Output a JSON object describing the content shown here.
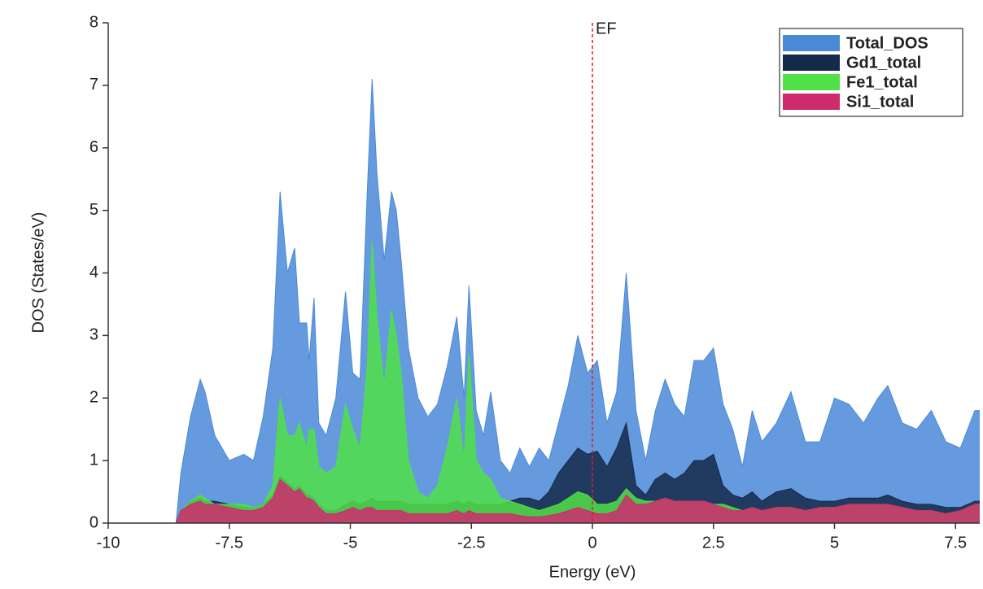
{
  "chart_data": {
    "type": "area",
    "xlabel": "Energy (eV)",
    "ylabel": "DOS (States/eV)",
    "xlim": [
      -10,
      8
    ],
    "ylim": [
      0,
      8
    ],
    "xticks": [
      -10,
      -7.5,
      -5,
      -2.5,
      0,
      2.5,
      5,
      7.5
    ],
    "yticks": [
      0,
      1,
      2,
      3,
      4,
      5,
      6,
      7,
      8
    ],
    "legend": "upper right",
    "annotations": [
      {
        "text": "EF",
        "x": 0,
        "color": "#e02020"
      }
    ],
    "x": [
      -10,
      -8.6,
      -8.5,
      -8.3,
      -8.1,
      -8.0,
      -7.8,
      -7.5,
      -7.2,
      -7.0,
      -6.8,
      -6.6,
      -6.45,
      -6.3,
      -6.15,
      -6.05,
      -5.9,
      -5.85,
      -5.75,
      -5.65,
      -5.5,
      -5.3,
      -5.1,
      -4.95,
      -4.8,
      -4.65,
      -4.55,
      -4.45,
      -4.3,
      -4.15,
      -4.05,
      -3.95,
      -3.8,
      -3.6,
      -3.4,
      -3.2,
      -3.0,
      -2.8,
      -2.65,
      -2.55,
      -2.4,
      -2.25,
      -2.1,
      -1.9,
      -1.7,
      -1.5,
      -1.3,
      -1.1,
      -0.9,
      -0.7,
      -0.5,
      -0.3,
      -0.1,
      0.1,
      0.3,
      0.5,
      0.7,
      0.9,
      1.1,
      1.3,
      1.5,
      1.7,
      1.9,
      2.1,
      2.3,
      2.5,
      2.7,
      2.9,
      3.1,
      3.3,
      3.5,
      3.8,
      4.1,
      4.4,
      4.7,
      5.0,
      5.3,
      5.6,
      5.9,
      6.1,
      6.4,
      6.7,
      7.0,
      7.3,
      7.6,
      7.9,
      8
    ],
    "series": [
      {
        "name": "Total_DOS",
        "color": "#4a8ad8",
        "values": [
          0,
          0,
          0.8,
          1.7,
          2.3,
          2.1,
          1.4,
          1.0,
          1.1,
          1.0,
          1.7,
          2.8,
          5.3,
          4.0,
          4.4,
          3.2,
          3.2,
          2.6,
          3.6,
          1.6,
          1.4,
          2.0,
          3.7,
          2.4,
          2.3,
          5.3,
          7.1,
          5.6,
          4.2,
          5.3,
          5.0,
          4.2,
          2.8,
          2.0,
          1.7,
          1.9,
          2.5,
          3.3,
          2.0,
          3.8,
          1.8,
          1.4,
          2.1,
          1.0,
          0.8,
          1.2,
          0.9,
          1.2,
          1.0,
          1.6,
          2.2,
          3.0,
          2.4,
          2.6,
          1.6,
          2.1,
          4.0,
          1.8,
          1.0,
          1.8,
          2.3,
          1.9,
          1.7,
          2.6,
          2.6,
          2.8,
          1.9,
          1.5,
          0.9,
          1.8,
          1.3,
          1.6,
          2.1,
          1.3,
          1.3,
          2.0,
          1.9,
          1.6,
          2.0,
          2.2,
          1.6,
          1.5,
          1.8,
          1.3,
          1.2,
          1.8,
          1.8
        ]
      },
      {
        "name": "Gd1_total",
        "color": "#15294a",
        "values": [
          0,
          0,
          0.2,
          0.35,
          0.4,
          0.35,
          0.35,
          0.3,
          0.25,
          0.25,
          0.3,
          0.45,
          0.75,
          0.65,
          0.55,
          0.6,
          0.45,
          0.45,
          0.4,
          0.3,
          0.2,
          0.2,
          0.3,
          0.35,
          0.3,
          0.35,
          0.4,
          0.35,
          0.35,
          0.35,
          0.35,
          0.35,
          0.3,
          0.3,
          0.3,
          0.3,
          0.3,
          0.35,
          0.3,
          0.35,
          0.3,
          0.3,
          0.3,
          0.3,
          0.35,
          0.4,
          0.4,
          0.35,
          0.5,
          0.8,
          1.0,
          1.2,
          1.1,
          1.15,
          0.9,
          1.2,
          1.6,
          0.6,
          0.45,
          0.7,
          0.8,
          0.7,
          0.8,
          1.0,
          1.0,
          1.1,
          0.6,
          0.45,
          0.4,
          0.5,
          0.35,
          0.5,
          0.55,
          0.4,
          0.35,
          0.35,
          0.4,
          0.4,
          0.4,
          0.45,
          0.35,
          0.3,
          0.3,
          0.25,
          0.25,
          0.35,
          0.35
        ]
      },
      {
        "name": "Fe1_total",
        "color": "#50e048",
        "values": [
          0,
          0,
          0.2,
          0.35,
          0.45,
          0.4,
          0.3,
          0.3,
          0.3,
          0.25,
          0.3,
          0.6,
          2.0,
          1.4,
          1.4,
          1.6,
          1.2,
          1.5,
          1.5,
          0.9,
          0.8,
          0.9,
          1.9,
          1.5,
          1.2,
          2.5,
          4.5,
          3.3,
          2.2,
          3.4,
          3.0,
          2.4,
          1.0,
          0.5,
          0.4,
          0.6,
          1.2,
          2.0,
          1.0,
          2.7,
          1.0,
          0.8,
          0.7,
          0.4,
          0.35,
          0.3,
          0.25,
          0.2,
          0.25,
          0.3,
          0.4,
          0.5,
          0.45,
          0.3,
          0.3,
          0.35,
          0.55,
          0.4,
          0.35,
          0.35,
          0.4,
          0.35,
          0.35,
          0.35,
          0.35,
          0.3,
          0.3,
          0.25,
          0.2,
          0.25,
          0.2,
          0.25,
          0.25,
          0.2,
          0.25,
          0.25,
          0.3,
          0.3,
          0.3,
          0.3,
          0.25,
          0.2,
          0.2,
          0.15,
          0.2,
          0.3,
          0.3
        ]
      },
      {
        "name": "Si1_total",
        "color": "#d02a6e",
        "values": [
          0,
          0,
          0.2,
          0.3,
          0.35,
          0.3,
          0.3,
          0.25,
          0.2,
          0.2,
          0.25,
          0.4,
          0.7,
          0.6,
          0.5,
          0.55,
          0.4,
          0.4,
          0.35,
          0.25,
          0.15,
          0.15,
          0.2,
          0.25,
          0.2,
          0.25,
          0.25,
          0.2,
          0.2,
          0.2,
          0.2,
          0.2,
          0.15,
          0.15,
          0.15,
          0.15,
          0.15,
          0.2,
          0.15,
          0.2,
          0.15,
          0.15,
          0.15,
          0.15,
          0.15,
          0.12,
          0.1,
          0.1,
          0.12,
          0.15,
          0.2,
          0.25,
          0.2,
          0.15,
          0.15,
          0.2,
          0.45,
          0.3,
          0.3,
          0.35,
          0.4,
          0.35,
          0.35,
          0.35,
          0.35,
          0.3,
          0.25,
          0.2,
          0.2,
          0.25,
          0.2,
          0.25,
          0.25,
          0.2,
          0.25,
          0.25,
          0.3,
          0.3,
          0.3,
          0.3,
          0.25,
          0.2,
          0.2,
          0.15,
          0.2,
          0.3,
          0.3
        ]
      }
    ]
  }
}
